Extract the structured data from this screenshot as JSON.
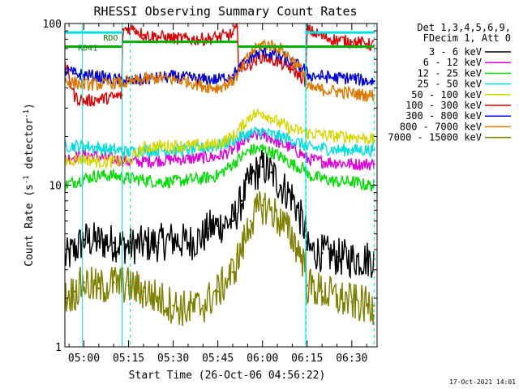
{
  "chart_data": {
    "type": "line",
    "title": "RHESSI Observing Summary Count Rates",
    "xlabel": "Start Time (26-Oct-06 04:56:22)",
    "ylabel": "Count Rate (s⁻¹ detector⁻¹)",
    "ylabel_parts": {
      "main": "Count Rate (s",
      "exp1": "-1",
      "mid": " detector",
      "exp2": "-1",
      "end": ")"
    },
    "yscale": "log",
    "xlim": [
      -6.4,
      98.5
    ],
    "ylim": [
      1,
      100
    ],
    "x_unit": "minutes from 05:00 UT",
    "x_ticks": [
      {
        "value": 0,
        "label": "05:00"
      },
      {
        "value": 15,
        "label": "05:15"
      },
      {
        "value": 30,
        "label": "05:30"
      },
      {
        "value": 45,
        "label": "05:45"
      },
      {
        "value": 60,
        "label": "06:00"
      },
      {
        "value": 75,
        "label": "06:15"
      },
      {
        "value": 90,
        "label": "06:30"
      }
    ],
    "y_ticks": [
      {
        "value": 1,
        "label": "1"
      },
      {
        "value": 10,
        "label": "10"
      },
      {
        "value": 100,
        "label": "100"
      }
    ],
    "legend": {
      "header": [
        "Det 1,3,4,5,6,9,",
        "FDecim 1, Att 0"
      ],
      "placement": "right"
    },
    "annotations": [
      {
        "text": "RDO",
        "x": 6.5,
        "y": 82
      },
      {
        "text": "RD41",
        "x": -2,
        "y": 71
      }
    ],
    "vertical_lines": [
      {
        "x": -0.5,
        "style": "solid"
      },
      {
        "x": 12.8,
        "style": "solid"
      },
      {
        "x": 74.5,
        "style": "solid"
      },
      {
        "x": 15.5,
        "style": "dashed"
      },
      {
        "x": 74.7,
        "style": "dashed"
      },
      {
        "x": 97.5,
        "style": "dashed"
      }
    ],
    "flag_bars": [
      {
        "color": "#00b000",
        "segments": [
          [
            -6.4,
            6,
            72
          ],
          [
            6,
            12.8,
            72
          ],
          [
            12.8,
            51.5,
            77
          ],
          [
            51.5,
            97.5,
            72
          ]
        ]
      },
      {
        "color": "#00e0e0",
        "segments": [
          [
            -6.4,
            12.8,
            88
          ],
          [
            74.5,
            97.5,
            88
          ]
        ]
      }
    ],
    "series": [
      {
        "name": "3 - 6 keV",
        "color": "#000000",
        "x": [
          -6.4,
          -3,
          0,
          5,
          10,
          15,
          20,
          25,
          30,
          35,
          40,
          42,
          45,
          50,
          53,
          56,
          60,
          63,
          66,
          70,
          74.5,
          75,
          80,
          85,
          90,
          95,
          97.5
        ],
        "y": [
          3.5,
          4.0,
          4.6,
          4.5,
          4.4,
          4.2,
          4.3,
          4.4,
          4.6,
          4.4,
          4.8,
          5.4,
          5.6,
          6.0,
          8.0,
          11.0,
          13.0,
          12.0,
          10.0,
          8.5,
          5.2,
          4.0,
          3.8,
          3.6,
          3.5,
          3.5,
          3.5
        ]
      },
      {
        "name": "6 - 12 keV",
        "color": "#e000e0",
        "x": [
          -6.4,
          -3,
          0,
          5,
          10,
          15,
          20,
          25,
          30,
          35,
          40,
          45,
          50,
          53,
          56,
          60,
          63,
          66,
          70,
          74.5,
          75,
          80,
          85,
          90,
          95,
          97.5
        ],
        "y": [
          14.5,
          15.0,
          15.5,
          15.0,
          14.5,
          14.0,
          14.0,
          14.2,
          14.5,
          14.5,
          14.8,
          15.0,
          16.5,
          18.0,
          20.0,
          20.5,
          19.5,
          18.0,
          17.0,
          15.0,
          14.5,
          14.0,
          13.8,
          13.5,
          13.5,
          13.5
        ]
      },
      {
        "name": "12 - 25 keV",
        "color": "#00e000",
        "x": [
          -6.4,
          -3,
          0,
          5,
          10,
          15,
          20,
          25,
          30,
          35,
          40,
          45,
          50,
          53,
          56,
          60,
          63,
          66,
          70,
          74.5,
          75,
          80,
          85,
          90,
          95,
          97.5
        ],
        "y": [
          10.0,
          10.5,
          11.0,
          11.5,
          11.5,
          11.0,
          10.8,
          10.5,
          10.5,
          10.8,
          11.0,
          11.5,
          13.5,
          15.0,
          16.5,
          16.8,
          16.0,
          15.0,
          13.5,
          12.5,
          11.5,
          11.0,
          10.5,
          10.5,
          10.0,
          10.0
        ]
      },
      {
        "name": "25 - 50 keV",
        "color": "#00e0e0",
        "x": [
          -6.4,
          -3,
          0,
          5,
          10,
          15,
          20,
          25,
          30,
          35,
          40,
          45,
          50,
          53,
          56,
          60,
          63,
          66,
          70,
          74.5,
          75,
          80,
          85,
          90,
          95,
          97.5
        ],
        "y": [
          17.5,
          17.5,
          17.5,
          17.0,
          16.5,
          16.0,
          16.5,
          16.5,
          16.5,
          16.5,
          17.0,
          17.5,
          19.0,
          20.0,
          21.0,
          21.5,
          20.5,
          20.0,
          19.0,
          17.5,
          17.0,
          17.0,
          16.5,
          16.5,
          16.5,
          16.5
        ]
      },
      {
        "name": "50 - 100 keV",
        "color": "#d8d800",
        "x": [
          -6.4,
          -3,
          0,
          5,
          10,
          15,
          20,
          25,
          30,
          35,
          40,
          45,
          50,
          53,
          56,
          60,
          63,
          66,
          70,
          74.5,
          75,
          80,
          85,
          90,
          95,
          97.5
        ],
        "y": [
          14.0,
          14.5,
          14.5,
          14.0,
          14.0,
          14.0,
          17.0,
          17.5,
          17.5,
          17.5,
          17.5,
          18.0,
          20.0,
          23.0,
          27.0,
          28.0,
          26.0,
          24.0,
          22.0,
          21.5,
          21.0,
          20.5,
          20.0,
          20.0,
          19.5,
          19.0
        ]
      },
      {
        "name": "100 - 300 keV",
        "color": "#e00000",
        "x": [
          -6.4,
          -3,
          0,
          5,
          10,
          12.8,
          13,
          17,
          20,
          25,
          30,
          35,
          40,
          45,
          50,
          51.5,
          52,
          55,
          60,
          63,
          66,
          70,
          74.5,
          75,
          80,
          85,
          90,
          95,
          97.5
        ],
        "y": [
          57,
          35,
          33,
          34,
          35,
          36,
          92,
          93,
          85,
          83,
          81,
          80,
          80,
          82,
          86,
          95,
          55,
          55,
          63,
          60,
          57,
          52,
          44,
          92,
          83,
          79,
          77,
          75,
          73
        ]
      },
      {
        "name": "300 - 800 keV",
        "color": "#0000e0",
        "x": [
          -6.4,
          -3,
          0,
          5,
          10,
          15,
          20,
          25,
          30,
          35,
          40,
          45,
          50,
          53,
          56,
          60,
          63,
          66,
          70,
          74.5,
          75,
          80,
          85,
          90,
          95,
          97.5
        ],
        "y": [
          51,
          49,
          48,
          47,
          45,
          44,
          45,
          46,
          47,
          46,
          45,
          45,
          48,
          54,
          62,
          67,
          65,
          62,
          57,
          52,
          48,
          47,
          46,
          46,
          44,
          44
        ]
      },
      {
        "name": "800 - 7000 keV",
        "color": "#e07800",
        "x": [
          -6.4,
          -3,
          0,
          5,
          10,
          15,
          20,
          25,
          30,
          35,
          40,
          45,
          50,
          53,
          56,
          60,
          63,
          66,
          70,
          74.5,
          75,
          80,
          85,
          90,
          95,
          97.5
        ],
        "y": [
          44,
          43,
          42,
          42,
          43,
          43,
          45,
          46,
          45,
          44,
          41,
          40,
          44,
          52,
          66,
          75,
          73,
          70,
          60,
          48,
          40,
          39,
          38,
          37,
          36,
          36
        ]
      },
      {
        "name": "7000 - 15000 keV",
        "color": "#808000",
        "x": [
          -6.4,
          -3,
          0,
          5,
          10,
          15,
          20,
          25,
          30,
          35,
          40,
          45,
          50,
          53,
          56,
          60,
          63,
          66,
          70,
          74.5,
          75,
          80,
          85,
          90,
          95,
          97.5
        ],
        "y": [
          2.0,
          2.2,
          2.5,
          2.3,
          2.5,
          2.4,
          2.2,
          2.0,
          1.8,
          1.7,
          1.8,
          2.2,
          2.9,
          4.0,
          6.0,
          7.5,
          7.0,
          6.0,
          4.8,
          3.2,
          2.4,
          2.2,
          2.0,
          1.9,
          1.8,
          1.8
        ]
      }
    ]
  },
  "footer_timestamp": "17-Oct-2021 14:01"
}
